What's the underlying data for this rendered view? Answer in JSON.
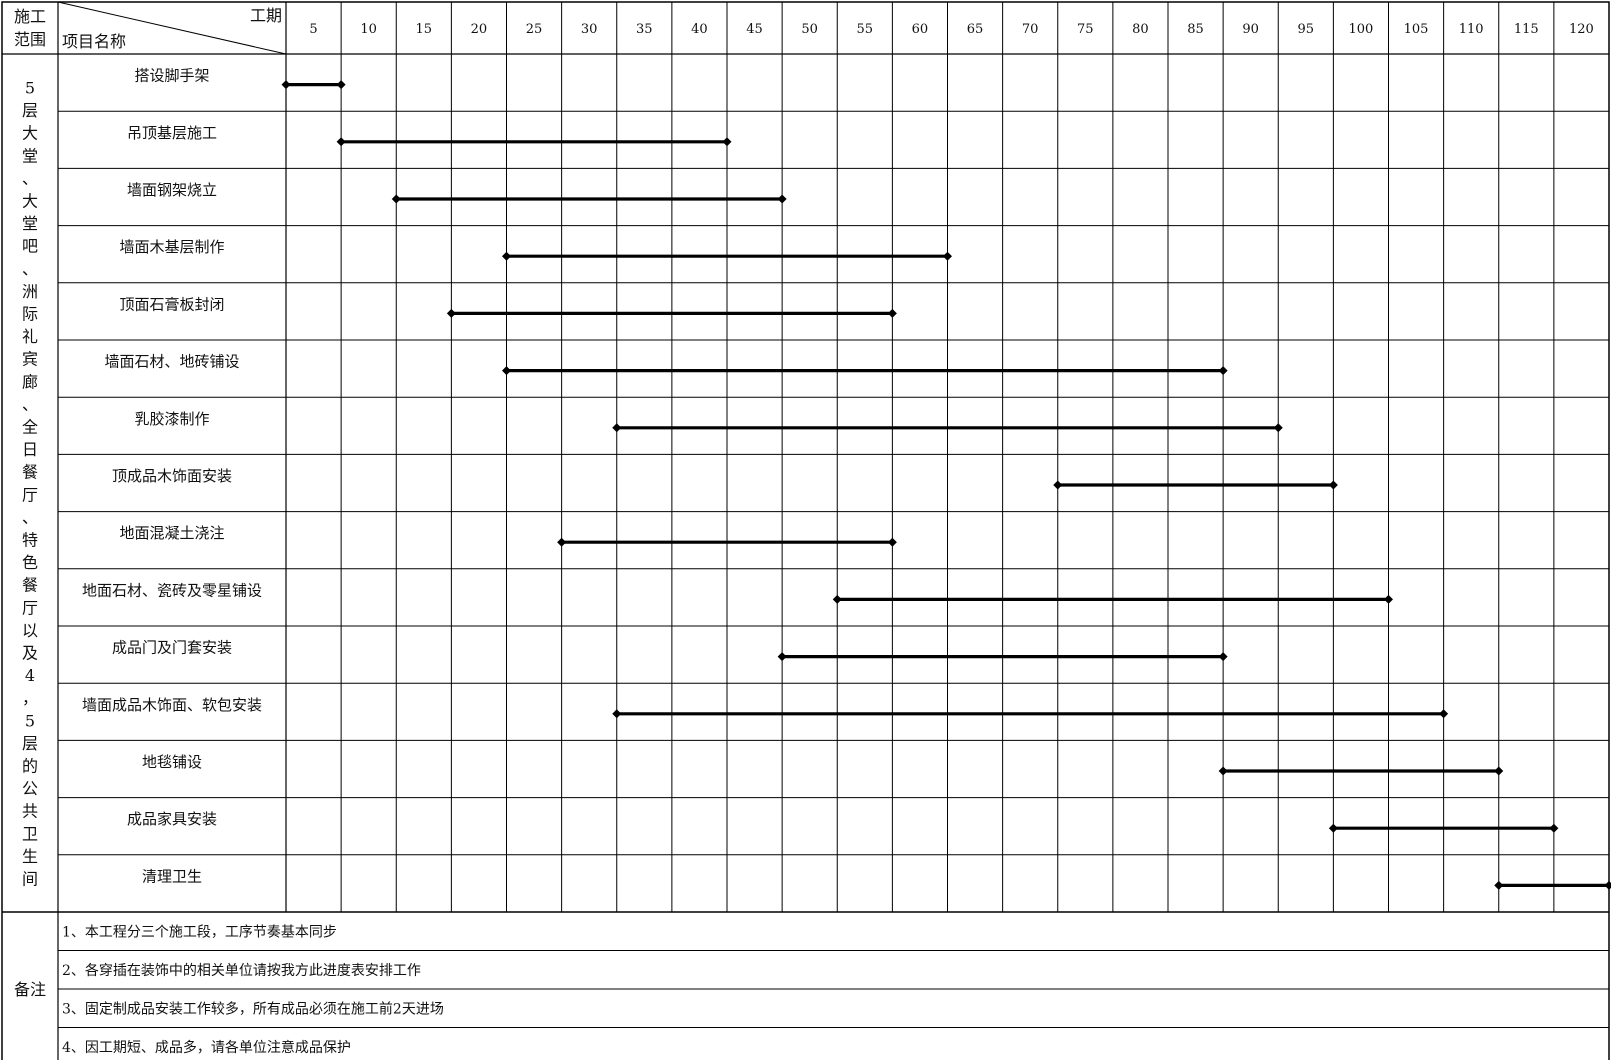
{
  "header": {
    "scope_label": "施工范围",
    "scope_line1": "施工",
    "scope_line2": "范围",
    "duration_label": "工期",
    "item_name_label": "项目名称"
  },
  "scope": {
    "text": "5层大堂、大堂吧、洲际礼宾廊、全日餐厅、特色餐厅以及4，5层的公共卫生间",
    "chars": [
      "5",
      "层",
      "大",
      "堂",
      "、",
      "大",
      "堂",
      "吧",
      "、",
      "洲",
      "际",
      "礼",
      "宾",
      "廊",
      "、",
      "全",
      "日",
      "餐",
      "厅",
      "、",
      "特",
      "色",
      "餐",
      "厅",
      "以",
      "及",
      "4",
      "，",
      "5",
      "层",
      "的",
      "公",
      "共",
      "卫",
      "生",
      "间"
    ]
  },
  "chart_data": {
    "type": "gantt",
    "x": [
      "5",
      "10",
      "15",
      "20",
      "25",
      "30",
      "35",
      "40",
      "45",
      "50",
      "55",
      "60",
      "65",
      "70",
      "75",
      "80",
      "85",
      "90",
      "95",
      "100",
      "105",
      "110",
      "115",
      "120"
    ],
    "xlabel": "工期",
    "ylabel": "项目名称",
    "xlim": [
      0,
      120
    ],
    "grid": true,
    "tasks": [
      {
        "name": "搭设脚手架",
        "start": 0,
        "end": 5
      },
      {
        "name": "吊顶基层施工",
        "start": 5,
        "end": 40
      },
      {
        "name": "墙面钢架烧立",
        "start": 10,
        "end": 45
      },
      {
        "name": "墙面木基层制作",
        "start": 20,
        "end": 60
      },
      {
        "name": "顶面石膏板封闭",
        "start": 15,
        "end": 55
      },
      {
        "name": "墙面石材、地砖铺设",
        "start": 20,
        "end": 85
      },
      {
        "name": "乳胶漆制作",
        "start": 30,
        "end": 90
      },
      {
        "name": "顶成品木饰面安装",
        "start": 70,
        "end": 95
      },
      {
        "name": "地面混凝土浇注",
        "start": 25,
        "end": 55
      },
      {
        "name": "地面石材、瓷砖及零星铺设",
        "start": 50,
        "end": 100
      },
      {
        "name": "成品门及门套安装",
        "start": 45,
        "end": 85
      },
      {
        "name": "墙面成品木饰面、软包安装",
        "start": 30,
        "end": 105
      },
      {
        "name": "地毯铺设",
        "start": 85,
        "end": 110
      },
      {
        "name": "成品家具安装",
        "start": 95,
        "end": 115
      },
      {
        "name": "清理卫生",
        "start": 110,
        "end": 120
      }
    ]
  },
  "remarks": {
    "label": "备注",
    "items": [
      "1、本工程分三个施工段，工序节奏基本同步",
      "2、各穿插在装饰中的相关单位请按我方此进度表安排工作",
      "3、固定制成品安装工作较多，所有成品必须在施工前2天进场",
      "4、因工期短、成品多，请各单位注意成品保护"
    ]
  }
}
